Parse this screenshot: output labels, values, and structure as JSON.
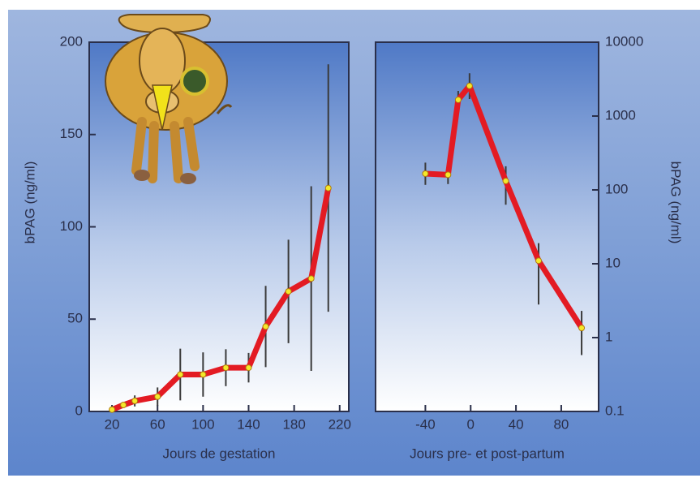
{
  "chart_data": [
    {
      "type": "line",
      "y_label": "bPAG  (ng/ml)",
      "x_label": "Jours de gestation",
      "x": [
        20,
        30,
        40,
        60,
        80,
        100,
        120,
        140,
        155,
        175,
        195,
        210
      ],
      "series": [
        {
          "color": "#e31b23",
          "values": [
            1,
            3.5,
            5.7,
            8,
            20,
            20,
            23.7,
            23.7,
            46,
            65,
            72,
            121
          ],
          "errors": [
            1,
            1,
            3,
            5,
            14,
            12,
            10,
            8,
            22,
            28,
            50,
            67
          ]
        }
      ],
      "xlim": [
        0,
        228
      ],
      "xticks": [
        20,
        60,
        100,
        140,
        180,
        220
      ],
      "ylim": [
        0,
        200
      ],
      "yticks": [
        0,
        50,
        100,
        150,
        200
      ],
      "log_y": false,
      "y_axis_side": "left"
    },
    {
      "type": "line",
      "y_label": "bPAG  (ng/ml)",
      "x_label": "Jours pre- et post-partum",
      "x": [
        -40,
        -20,
        -11,
        -1,
        31,
        60,
        98
      ],
      "series": [
        {
          "color": "#e31b23",
          "values": [
            166,
            160,
            1660,
            2560,
            132,
            11,
            1.35
          ],
          "lower": [
            117,
            120,
            1230,
            1700,
            63,
            2.8,
            0.58
          ],
          "upper": [
            234,
            195,
            2190,
            3800,
            209,
            19,
            2.3
          ]
        }
      ],
      "xlim": [
        -84,
        113
      ],
      "xticks": [
        -40,
        0,
        40,
        80
      ],
      "ylim": [
        0.1,
        10000
      ],
      "yticks": [
        0.1,
        1,
        10,
        100,
        1000,
        10000
      ],
      "log_y": true,
      "y_axis_side": "right"
    }
  ]
}
